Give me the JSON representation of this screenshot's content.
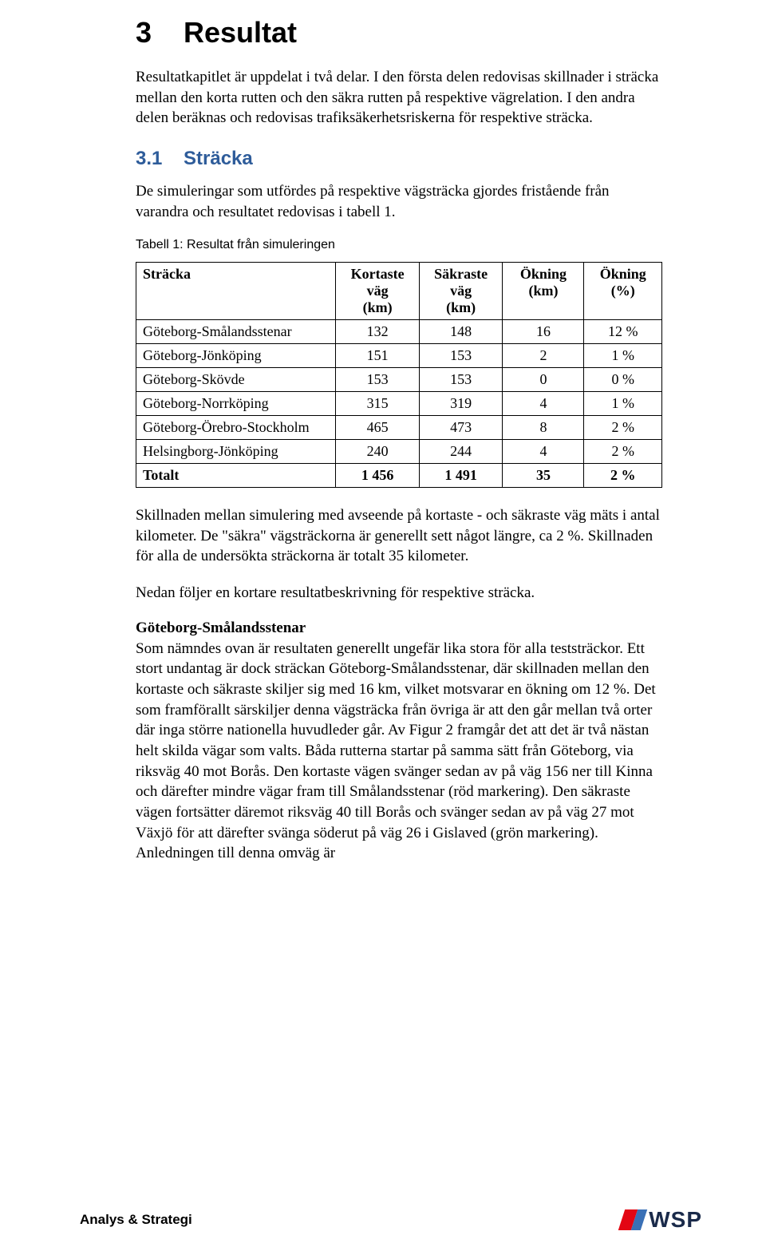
{
  "heading1": {
    "num": "3",
    "title": "Resultat"
  },
  "intro": "Resultatkapitlet är uppdelat i två delar. I den första delen redovisas skillnader i sträcka mellan den korta rutten och den säkra rutten på respektive vägrelation. I den andra delen beräknas och redovisas trafiksäkerhetsriskerna för respektive sträcka.",
  "heading2": {
    "num": "3.1",
    "title": "Sträcka"
  },
  "para31": "De simuleringar som utfördes på respektive vägsträcka gjordes fristående från varandra och resultatet redovisas i tabell 1.",
  "table": {
    "caption": "Tabell 1: Resultat från simuleringen",
    "headers": {
      "c0": "Sträcka",
      "c1a": "Kortaste väg",
      "c1b": "(km)",
      "c2a": "Säkraste väg",
      "c2b": "(km)",
      "c3": "Ökning (km)",
      "c4": "Ökning (%)"
    },
    "rows": [
      {
        "c0": "Göteborg-Smålandsstenar",
        "c1": "132",
        "c2": "148",
        "c3": "16",
        "c4": "12 %"
      },
      {
        "c0": "Göteborg-Jönköping",
        "c1": "151",
        "c2": "153",
        "c3": "2",
        "c4": "1 %"
      },
      {
        "c0": "Göteborg-Skövde",
        "c1": "153",
        "c2": "153",
        "c3": "0",
        "c4": "0 %"
      },
      {
        "c0": "Göteborg-Norrköping",
        "c1": "315",
        "c2": "319",
        "c3": "4",
        "c4": "1 %"
      },
      {
        "c0": "Göteborg-Örebro-Stockholm",
        "c1": "465",
        "c2": "473",
        "c3": "8",
        "c4": "2 %"
      },
      {
        "c0": "Helsingborg-Jönköping",
        "c1": "240",
        "c2": "244",
        "c3": "4",
        "c4": "2 %"
      }
    ],
    "total": {
      "c0": "Totalt",
      "c1": "1 456",
      "c2": "1 491",
      "c3": "35",
      "c4": "2 %"
    }
  },
  "afterTable1": "Skillnaden mellan simulering med avseende på kortaste - och säkraste väg mäts i antal kilometer. De \"säkra\" vägsträckorna är generellt sett något längre, ca 2 %. Skillnaden för alla de undersökta sträckorna är totalt 35 kilometer.",
  "afterTable2": "Nedan följer en kortare resultatbeskrivning för respektive sträcka.",
  "subheading": "Göteborg-Smålandsstenar",
  "gbgText": "Som nämndes ovan är resultaten generellt ungefär lika stora för alla teststräckor. Ett stort undantag är dock sträckan Göteborg-Smålandsstenar, där skillnaden mellan den kortaste och säkraste skiljer sig med 16 km, vilket motsvarar en ökning om 12 %. Det som framförallt särskiljer denna vägsträcka från övriga är att den går mellan två orter där inga större nationella huvudleder går. Av Figur 2 framgår det att det är två nästan helt skilda vägar som valts. Båda rutterna startar på samma sätt från Göteborg, via riksväg 40 mot Borås. Den kortaste vägen svänger sedan av på väg 156 ner till Kinna och därefter mindre vägar fram till Smålandsstenar (röd markering). Den säkraste vägen fortsätter däremot riksväg 40 till Borås och svänger sedan av på väg 27 mot Växjö för att därefter svänga söderut på väg 26 i Gislaved (grön markering). Anledningen till denna omväg är",
  "footer": {
    "left": "Analys & Strategi",
    "logoText": "WSP"
  },
  "colors": {
    "headingBlue": "#2e5c9a",
    "logoRed": "#e30613",
    "logoBlue": "#3a70b6",
    "logoTextColor": "#1a2a4a"
  }
}
